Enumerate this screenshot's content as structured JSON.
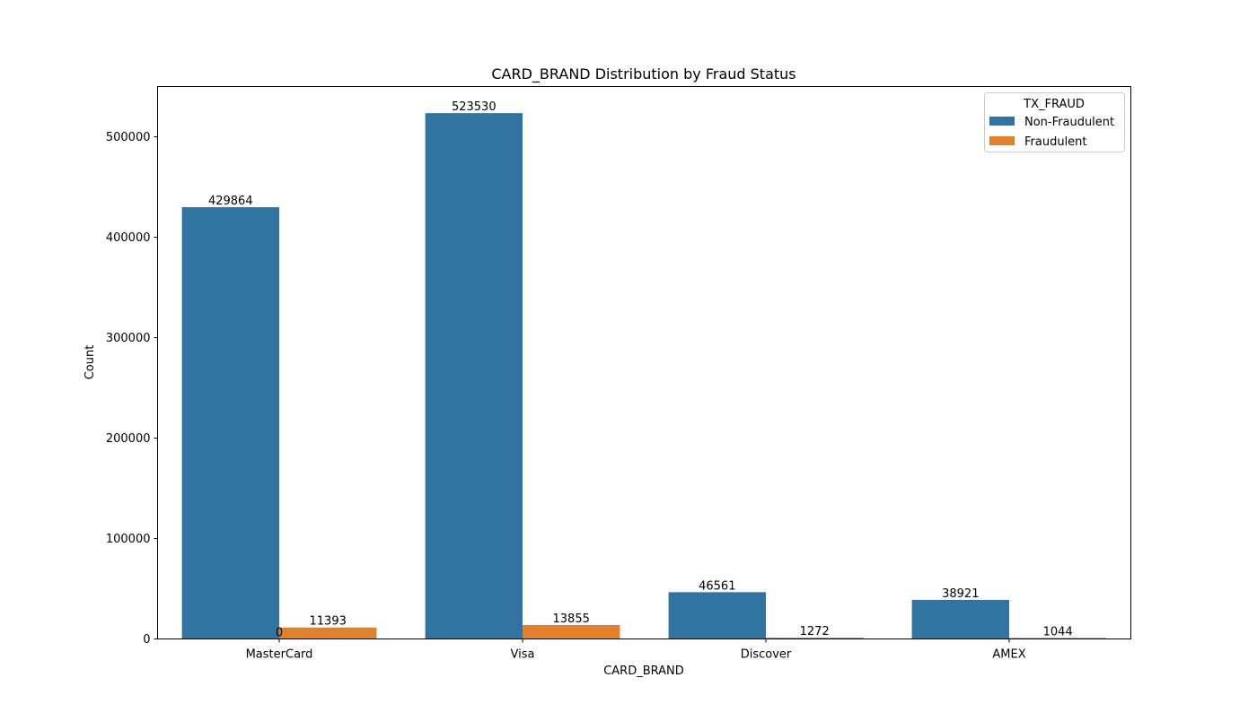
{
  "chart_data": {
    "type": "bar",
    "title": "CARD_BRAND Distribution by Fraud Status",
    "xlabel": "CARD_BRAND",
    "ylabel": "Count",
    "categories": [
      "MasterCard",
      "Visa",
      "Discover",
      "AMEX"
    ],
    "ylim": [
      0,
      550000
    ],
    "yticks": [
      0,
      100000,
      200000,
      300000,
      400000,
      500000
    ],
    "legend": {
      "title": "TX_FRAUD",
      "placement": "top-right"
    },
    "series": [
      {
        "name": "Non-Fraudulent",
        "color": "#3274a1",
        "values": [
          429864,
          523530,
          46561,
          38921
        ]
      },
      {
        "name": "Fraudulent",
        "color": "#e1812c",
        "values": [
          11393,
          13855,
          1272,
          1044
        ]
      }
    ],
    "annotations": [
      {
        "text": "0",
        "category": "MasterCard"
      }
    ]
  }
}
